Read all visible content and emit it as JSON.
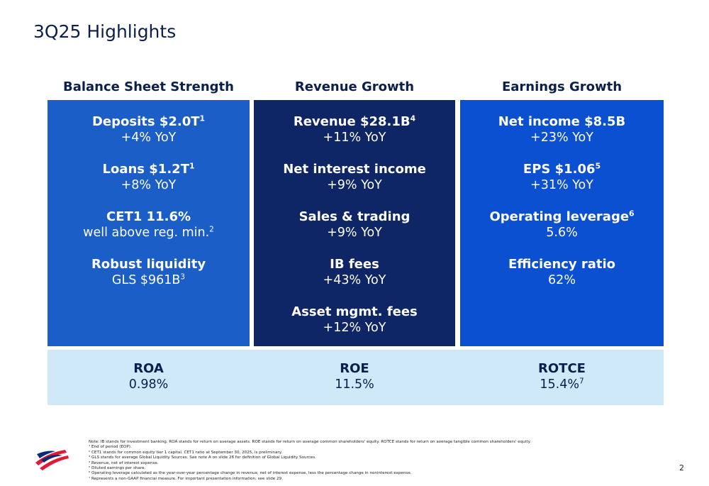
{
  "title": "3Q25 Highlights",
  "columns": [
    {
      "heading": "Balance Sheet Strength",
      "color": "#1c5ec8",
      "items": [
        {
          "label": "Deposits $2.0T",
          "label_sup": "1",
          "detail": "+4% YoY"
        },
        {
          "label": "Loans $1.2T",
          "label_sup": "1",
          "detail": "+8% YoY"
        },
        {
          "label": "CET1 11.6%",
          "detail": "well above reg. min.",
          "detail_sup": "2"
        },
        {
          "label": "Robust liquidity",
          "detail": "GLS $961B",
          "detail_sup": "3"
        }
      ]
    },
    {
      "heading": "Revenue Growth",
      "color": "#0e2566",
      "items": [
        {
          "label": "Revenue $28.1B",
          "label_sup": "4",
          "detail": "+11% YoY"
        },
        {
          "label": "Net interest income",
          "detail": "+9% YoY"
        },
        {
          "label": "Sales & trading",
          "detail": "+9% YoY"
        },
        {
          "label": "IB fees",
          "detail": "+43% YoY"
        },
        {
          "label": "Asset mgmt. fees",
          "detail": "+12% YoY"
        }
      ]
    },
    {
      "heading": "Earnings Growth",
      "color": "#0a50d0",
      "items": [
        {
          "label": "Net income $8.5B",
          "detail": "+23% YoY"
        },
        {
          "label": "EPS $1.06",
          "label_sup": "5",
          "detail": "+31% YoY"
        },
        {
          "label": "Operating leverage",
          "label_sup": "6",
          "detail": "5.6%"
        },
        {
          "label": "Efficiency ratio",
          "detail": "62%"
        }
      ]
    }
  ],
  "metrics": [
    {
      "label": "ROA",
      "value": "0.98%"
    },
    {
      "label": "ROE",
      "value": "11.5%"
    },
    {
      "label": "ROTCE",
      "value": "15.4%",
      "value_sup": "7"
    }
  ],
  "footnotes": [
    "Note: IB stands for investment banking. ROA stands for return on average assets. ROE stands for return on average common shareholders' equity. ROTCE stands for return on average tangible common shareholders' equity.",
    "¹ End of period (EOP).",
    "² CET1 stands for common equity tier 1 capital. CET1 ratio at September 30, 2025, is preliminary.",
    "³ GLS stands for average Global Liquidity Sources. See note A on slide 26 for definition of Global Liquidity Sources.",
    "⁴ Revenue, net of interest expense.",
    "⁵ Diluted earnings per share.",
    "⁶ Operating leverage calculated as the year-over-year percentage change in revenue, net of interest expense, less the percentage change in noninterest expense.",
    "⁷ Represents a non-GAAP financial measure. For important presentation information, see slide 29."
  ],
  "page_number": "2"
}
